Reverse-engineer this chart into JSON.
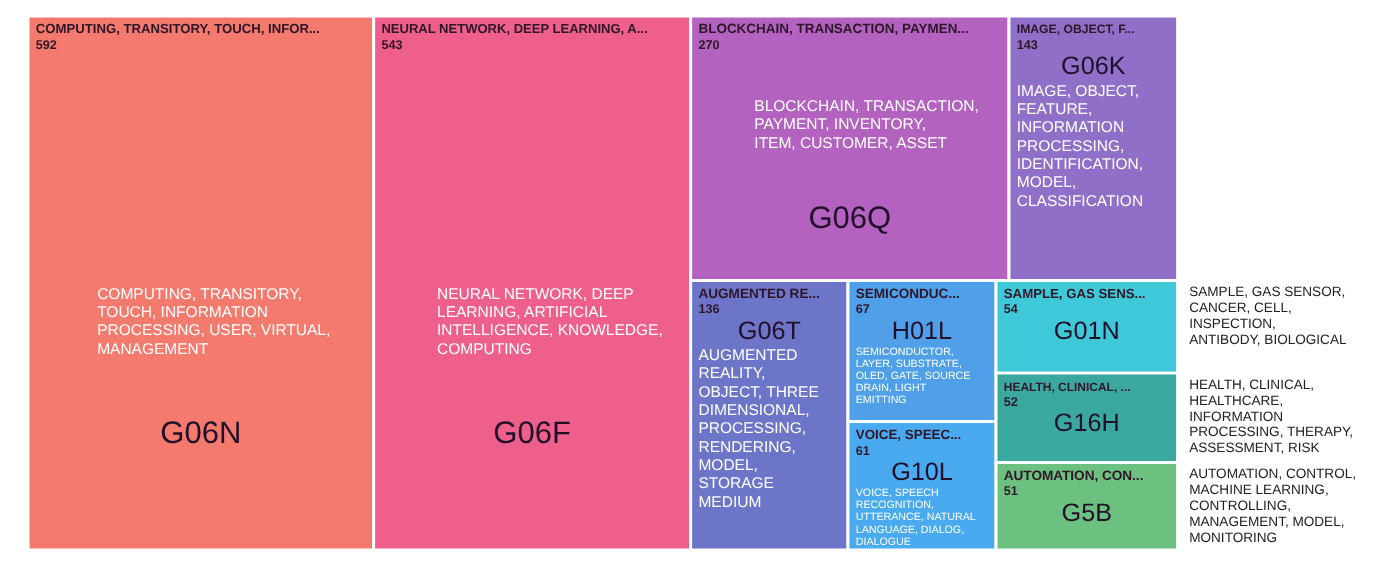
{
  "chart_data": {
    "type": "other",
    "categories": [
      "G06N",
      "G06F",
      "G06Q",
      "G06K",
      "G06T",
      "H01L",
      "G10L",
      "G01N",
      "G16H",
      "G5B"
    ],
    "values": [
      592,
      543,
      270,
      143,
      136,
      67,
      61,
      54,
      52,
      51
    ],
    "data_labels": true,
    "colors": [
      "#f47a6e",
      "#ee5f8c",
      "#b462c0",
      "#8f6fc8",
      "#6c75c8",
      "#4fa0e8",
      "#4aaaef",
      "#3fc8d8",
      "#3ba8a0",
      "#6cc080"
    ],
    "annotations": [
      {
        "text": "COMPUTING, TRANSITORY, TOUCH, INFOR...",
        "x": "G06N"
      },
      {
        "text": "NEURAL NETWORK, DEEP LEARNING, A...",
        "x": "G06F"
      },
      {
        "text": "BLOCKCHAIN, TRANSACTION, PAYMEN...",
        "x": "G06Q"
      },
      {
        "text": "IMAGE, OBJECT, F...",
        "x": "G06K"
      },
      {
        "text": "AUGMENTED RE...",
        "x": "G06T"
      },
      {
        "text": "SEMICONDUC...",
        "x": "H01L"
      },
      {
        "text": "VOICE, SPEEC...",
        "x": "G10L"
      },
      {
        "text": "SAMPLE, GAS SENS...",
        "x": "G01N"
      },
      {
        "text": "HEALTH, CLINICAL, ...",
        "x": "G16H"
      },
      {
        "text": "AUTOMATION, CON...",
        "x": "G5B"
      },
      {
        "text": "COMPUTING, TRANSITORY, TOUCH, INFORMATION PROCESSING, USER, VIRTUAL, MANAGEMENT",
        "x": "G06N"
      },
      {
        "text": "NEURAL NETWORK, DEEP LEARNING, ARTIFICIAL INTELLIGENCE, KNOWLEDGE, COMPUTING",
        "x": "G06F"
      },
      {
        "text": "BLOCKCHAIN, TRANSACTION, PAYMENT, INVENTORY, ITEM, CUSTOMER, ASSET",
        "x": "G06Q"
      },
      {
        "text": "IMAGE, OBJECT, FEATURE, INFORMATION PROCESSING, IDENTIFICATION, MODEL, CLASSIFICATION",
        "x": "G06K"
      },
      {
        "text": "AUGMENTED REALITY, OBJECT, THREE DIMENSIONAL, PROCESSING, RENDERING, MODEL, STORAGE MEDIUM",
        "x": "G06T"
      },
      {
        "text": "SEMICONDUCTOR, LAYER, SUBSTRATE, OLED, GATE, SOURCE DRAIN, LIGHT EMITTING",
        "x": "H01L"
      },
      {
        "text": "VOICE, SPEECH RECOGNITION, UTTERANCE, NATURAL LANGUAGE, DIALOG, DIALOGUE",
        "x": "G10L"
      },
      {
        "text": "SAMPLE, GAS SENSOR, CANCER, CELL, INSPECTION, ANTIBODY, BIOLOGICAL",
        "x": "G01N"
      },
      {
        "text": "HEALTH, CLINICAL, HEALTHCARE, INFORMATION PROCESSING, THERAPY, ASSESSMENT, RISK",
        "x": "G16H"
      },
      {
        "text": "AUTOMATION, CONTROL, MACHINE LEARNING, CONTROLLING, MANAGEMENT, MODEL, MONITORING",
        "x": "G5B"
      }
    ]
  }
}
